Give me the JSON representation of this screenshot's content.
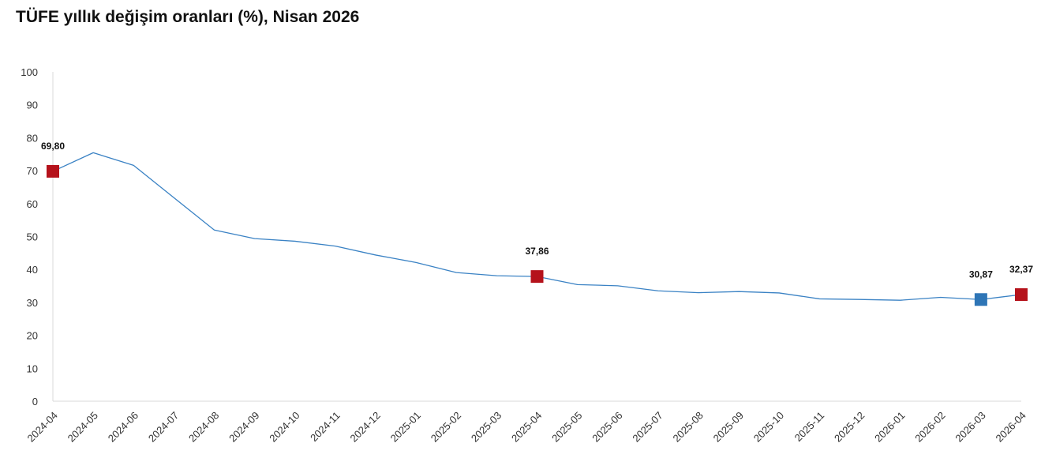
{
  "chart_data": {
    "type": "line",
    "title": "TÜFE yıllık değişim oranları (%), Nisan 2026",
    "xlabel": "",
    "ylabel": "",
    "ylim": [
      0,
      100
    ],
    "yticks": [
      0,
      10,
      20,
      30,
      40,
      50,
      60,
      70,
      80,
      90,
      100
    ],
    "grid": false,
    "legend": "none",
    "categories": [
      "2024-04",
      "2024-05",
      "2024-06",
      "2024-07",
      "2024-08",
      "2024-09",
      "2024-10",
      "2024-11",
      "2024-12",
      "2025-01",
      "2025-02",
      "2025-03",
      "2025-04",
      "2025-05",
      "2025-06",
      "2025-07",
      "2025-08",
      "2025-09",
      "2025-10",
      "2025-11",
      "2025-12",
      "2026-01",
      "2026-02",
      "2026-03",
      "2026-04"
    ],
    "series": [
      {
        "values": [
          69.8,
          75.45,
          71.6,
          61.78,
          51.97,
          49.38,
          48.58,
          47.09,
          44.38,
          42.12,
          39.05,
          38.1,
          37.86,
          35.41,
          35.05,
          33.52,
          32.95,
          33.29,
          32.87,
          31.07,
          30.89,
          30.65,
          31.53,
          30.87,
          32.37
        ]
      }
    ],
    "highlighted_points": [
      {
        "index": 0,
        "label": "69,80",
        "color": "#b5121b"
      },
      {
        "index": 12,
        "label": "37,86",
        "color": "#b5121b"
      },
      {
        "index": 23,
        "label": "30,87",
        "color": "#2e75b6"
      },
      {
        "index": 24,
        "label": "32,37",
        "color": "#b5121b"
      }
    ],
    "colors": {
      "line": "#3a82c4",
      "axis": "#d9d9d9",
      "highlight_red": "#b5121b",
      "highlight_blue": "#2e75b6"
    }
  }
}
